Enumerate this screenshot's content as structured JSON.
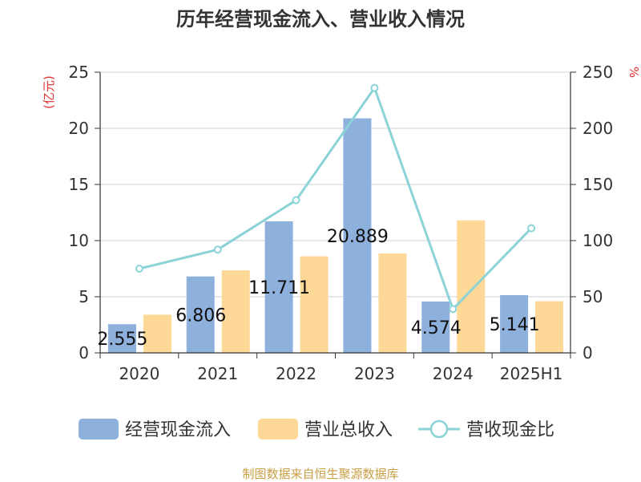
{
  "page": {
    "source_note": "制图数据来自恒生聚源数据库"
  },
  "colors": {
    "cash_inflow": "#8eb0dc",
    "revenue": "#fdd896",
    "ratio_line": "#8bd3d6",
    "unit_label": "#e03030",
    "axis_text": "#333333",
    "grid": "#d0d0d0"
  },
  "chart_data": {
    "type": "bar",
    "title": "历年经营现金流入、营业收入情况",
    "categories": [
      "2020",
      "2021",
      "2022",
      "2023",
      "2024",
      "2025H1"
    ],
    "y_left": {
      "label": "(亿元)",
      "lim": [
        0,
        25
      ],
      "ticks": [
        "0",
        "5",
        "10",
        "15",
        "20",
        "25"
      ]
    },
    "y_right": {
      "label": "%",
      "lim": [
        0,
        250
      ],
      "ticks": [
        "0",
        "50",
        "100",
        "150",
        "200",
        "250"
      ]
    },
    "grid": true,
    "legend_position": "bottom",
    "series": [
      {
        "name": "经营现金流入",
        "type": "bar",
        "axis": "left",
        "values": [
          2.555,
          6.806,
          11.711,
          20.889,
          4.574,
          5.141
        ],
        "labels": [
          "2.555",
          "6.806",
          "11.711",
          "20.889",
          "4.574",
          "5.141"
        ]
      },
      {
        "name": "营业总收入",
        "type": "bar",
        "axis": "left",
        "values": [
          3.4,
          7.35,
          8.6,
          8.85,
          11.8,
          4.6
        ]
      },
      {
        "name": "营收现金比",
        "type": "line",
        "axis": "right",
        "values": [
          75,
          92,
          136,
          236,
          39,
          111
        ]
      }
    ]
  }
}
